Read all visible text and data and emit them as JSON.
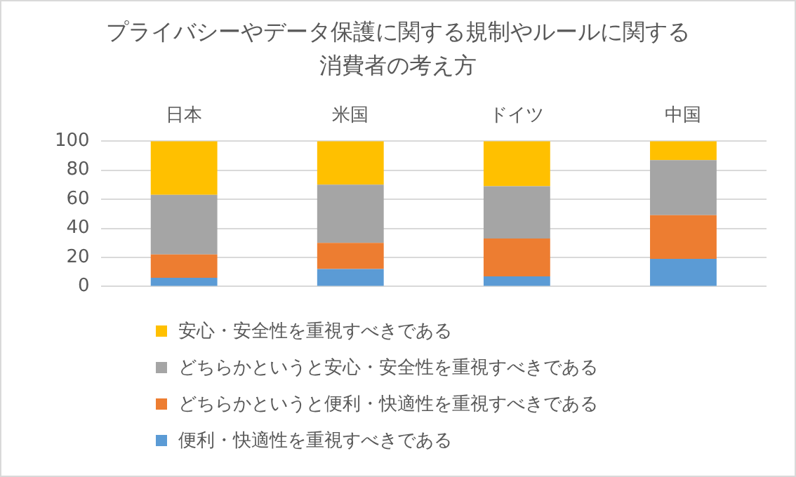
{
  "chart_data": {
    "type": "bar",
    "stacked": true,
    "title": "プライバシーやデータ保護に関する規制やルールに関する消費者の考え方",
    "categories": [
      "日本",
      "米国",
      "ドイツ",
      "中国"
    ],
    "ylim": [
      0,
      100
    ],
    "yticks": [
      0,
      20,
      40,
      60,
      80,
      100
    ],
    "grid": "y",
    "legend": "bottom",
    "series": [
      {
        "name": "便利・快適性を重視すべきである",
        "color": "#5b9bd5",
        "values": [
          6,
          12,
          7,
          19
        ]
      },
      {
        "name": "どちらかというと便利・快適性を重視すべきである",
        "color": "#ed7d31",
        "values": [
          16,
          18,
          26,
          30
        ]
      },
      {
        "name": "どちらかというと安心・安全性を重視すべきである",
        "color": "#a5a5a5",
        "values": [
          41,
          40,
          36,
          38
        ]
      },
      {
        "name": "安心・安全性を重視すべきである",
        "color": "#ffc000",
        "values": [
          37,
          30,
          31,
          13
        ]
      }
    ]
  }
}
